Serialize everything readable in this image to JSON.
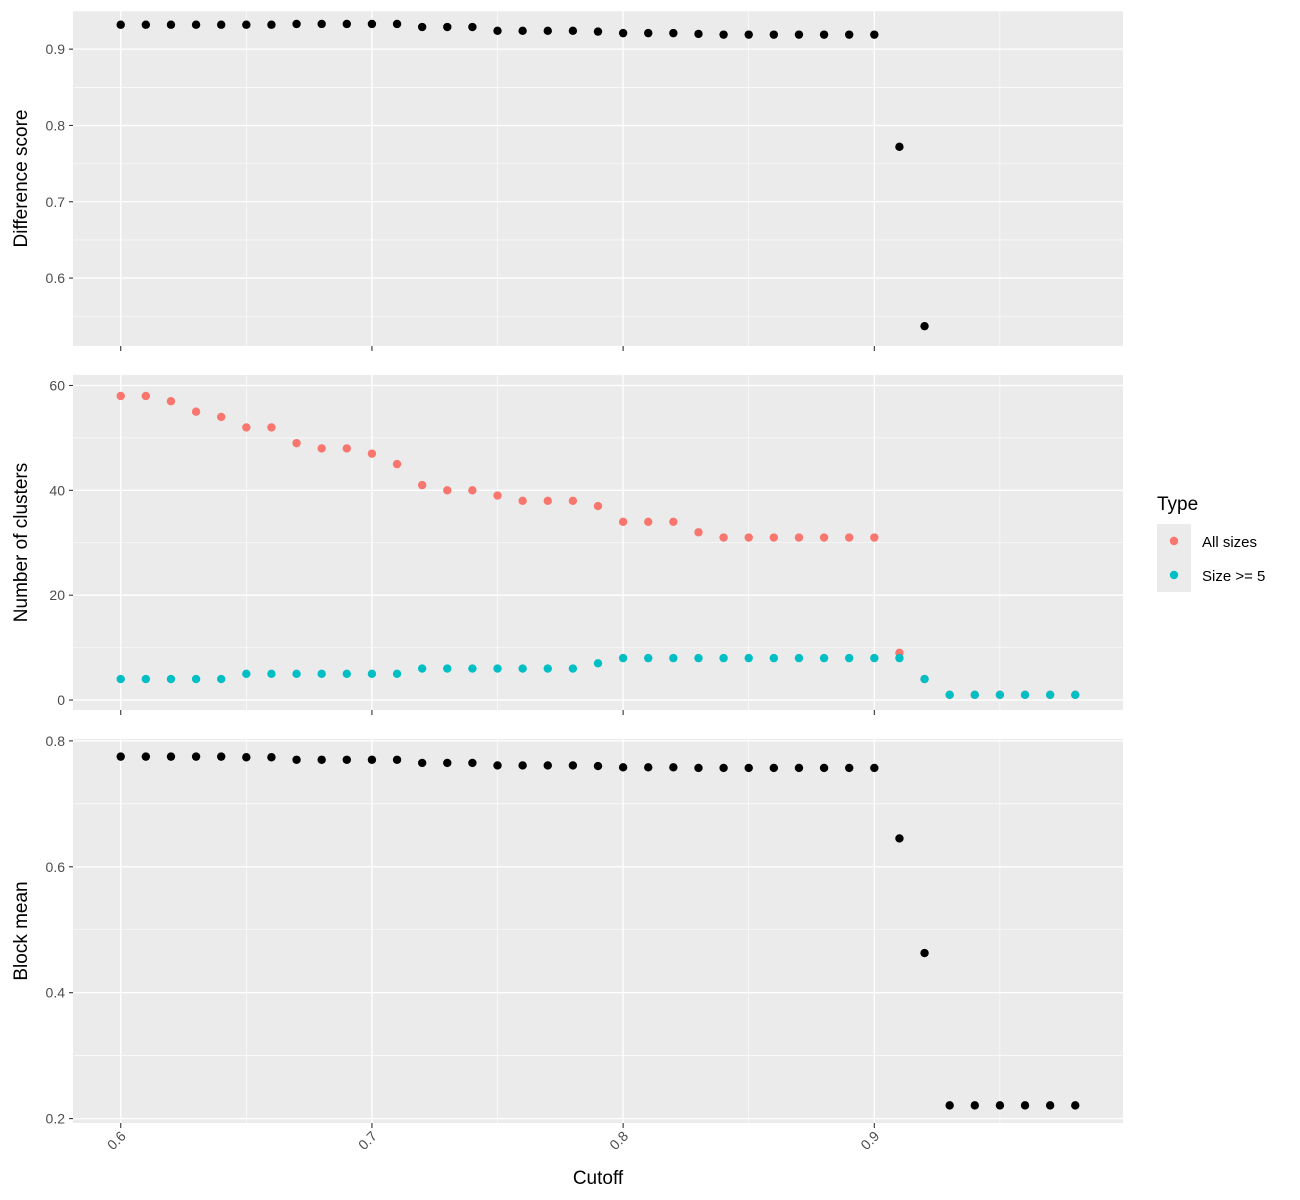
{
  "chart_data": {
    "type": "scatter",
    "x_title": "Cutoff",
    "x_ticks": [
      "0.6",
      "0.7",
      "0.8",
      "0.9"
    ],
    "x_range": [
      0.581,
      0.999
    ],
    "legend": {
      "title": "Type",
      "entries": [
        {
          "label": "All sizes",
          "color": "#F8766D"
        },
        {
          "label": "Size >= 5",
          "color": "#00BFC4"
        }
      ]
    },
    "panels": [
      {
        "ylabel": "Difference score",
        "y_range": [
          0.511,
          0.95
        ],
        "y_ticks": [
          "0.6",
          "0.7",
          "0.8",
          "0.9"
        ],
        "series": [
          {
            "color": "#000000",
            "x": [
              0.6,
              0.61,
              0.62,
              0.63,
              0.64,
              0.65,
              0.66,
              0.67,
              0.68,
              0.69,
              0.7,
              0.71,
              0.72,
              0.73,
              0.74,
              0.75,
              0.76,
              0.77,
              0.78,
              0.79,
              0.8,
              0.81,
              0.82,
              0.83,
              0.84,
              0.85,
              0.86,
              0.87,
              0.88,
              0.89,
              0.9,
              0.91,
              0.92
            ],
            "y": [
              0.932,
              0.932,
              0.932,
              0.932,
              0.932,
              0.932,
              0.932,
              0.933,
              0.933,
              0.933,
              0.933,
              0.933,
              0.929,
              0.929,
              0.929,
              0.924,
              0.924,
              0.924,
              0.924,
              0.923,
              0.921,
              0.921,
              0.921,
              0.92,
              0.919,
              0.919,
              0.919,
              0.919,
              0.919,
              0.919,
              0.919,
              0.772,
              0.537
            ]
          }
        ]
      },
      {
        "ylabel": "Number of clusters",
        "y_range": [
          -1.9,
          62.0
        ],
        "y_ticks": [
          "0",
          "20",
          "40",
          "60"
        ],
        "series": [
          {
            "name": "All sizes",
            "color": "#F8766D",
            "x": [
              0.6,
              0.61,
              0.62,
              0.63,
              0.64,
              0.65,
              0.66,
              0.67,
              0.68,
              0.69,
              0.7,
              0.71,
              0.72,
              0.73,
              0.74,
              0.75,
              0.76,
              0.77,
              0.78,
              0.79,
              0.8,
              0.81,
              0.82,
              0.83,
              0.84,
              0.85,
              0.86,
              0.87,
              0.88,
              0.89,
              0.9,
              0.91,
              0.92,
              0.93,
              0.94,
              0.95,
              0.96,
              0.97,
              0.98
            ],
            "y": [
              58,
              58,
              57,
              55,
              54,
              52,
              52,
              49,
              48,
              48,
              47,
              45,
              41,
              40,
              40,
              39,
              38,
              38,
              38,
              37,
              34,
              34,
              34,
              32,
              31,
              31,
              31,
              31,
              31,
              31,
              31,
              9,
              4,
              1,
              1,
              1,
              1,
              1,
              1
            ]
          },
          {
            "name": "Size >= 5",
            "color": "#00BFC4",
            "x": [
              0.6,
              0.61,
              0.62,
              0.63,
              0.64,
              0.65,
              0.66,
              0.67,
              0.68,
              0.69,
              0.7,
              0.71,
              0.72,
              0.73,
              0.74,
              0.75,
              0.76,
              0.77,
              0.78,
              0.79,
              0.8,
              0.81,
              0.82,
              0.83,
              0.84,
              0.85,
              0.86,
              0.87,
              0.88,
              0.89,
              0.9,
              0.91,
              0.92,
              0.93,
              0.94,
              0.95,
              0.96,
              0.97,
              0.98
            ],
            "y": [
              4,
              4,
              4,
              4,
              4,
              5,
              5,
              5,
              5,
              5,
              5,
              5,
              6,
              6,
              6,
              6,
              6,
              6,
              6,
              7,
              8,
              8,
              8,
              8,
              8,
              8,
              8,
              8,
              8,
              8,
              8,
              8,
              4,
              1,
              1,
              1,
              1,
              1,
              1
            ]
          }
        ]
      },
      {
        "ylabel": "Block mean",
        "y_range": [
          0.193,
          0.803
        ],
        "y_ticks": [
          "0.2",
          "0.4",
          "0.6",
          "0.8"
        ],
        "series": [
          {
            "color": "#000000",
            "x": [
              0.6,
              0.61,
              0.62,
              0.63,
              0.64,
              0.65,
              0.66,
              0.67,
              0.68,
              0.69,
              0.7,
              0.71,
              0.72,
              0.73,
              0.74,
              0.75,
              0.76,
              0.77,
              0.78,
              0.79,
              0.8,
              0.81,
              0.82,
              0.83,
              0.84,
              0.85,
              0.86,
              0.87,
              0.88,
              0.89,
              0.9,
              0.91,
              0.92,
              0.93,
              0.94,
              0.95,
              0.96,
              0.97,
              0.98
            ],
            "y": [
              0.775,
              0.775,
              0.775,
              0.775,
              0.775,
              0.774,
              0.774,
              0.77,
              0.77,
              0.77,
              0.77,
              0.77,
              0.765,
              0.765,
              0.765,
              0.761,
              0.761,
              0.761,
              0.761,
              0.76,
              0.758,
              0.758,
              0.758,
              0.757,
              0.757,
              0.757,
              0.757,
              0.757,
              0.757,
              0.757,
              0.757,
              0.645,
              0.463,
              0.221,
              0.221,
              0.221,
              0.221,
              0.221,
              0.221
            ]
          }
        ]
      }
    ]
  }
}
